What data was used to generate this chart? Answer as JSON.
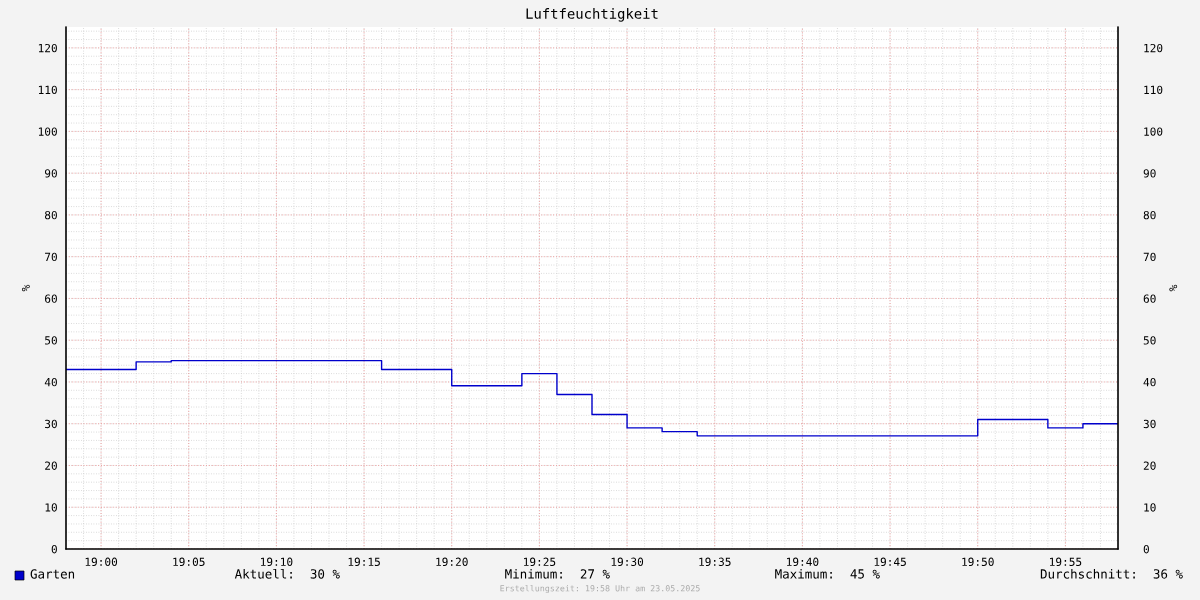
{
  "chart_data": {
    "type": "step",
    "title": "Luftfeuchtigkeit",
    "ylabel": "%",
    "y2label": "%",
    "x": [
      "2025-05-23T18:58",
      "2025-05-23T19:02",
      "2025-05-23T19:04",
      "2025-05-23T19:16",
      "2025-05-23T19:20",
      "2025-05-23T19:24",
      "2025-05-23T19:26",
      "2025-05-23T19:28",
      "2025-05-23T19:30",
      "2025-05-23T19:32",
      "2025-05-23T19:34",
      "2025-05-23T19:50",
      "2025-05-23T19:54",
      "2025-05-23T19:56",
      "2025-05-23T19:58"
    ],
    "series": [
      {
        "name": "Garten",
        "color": "#0000cc",
        "values": [
          43,
          44.8,
          45.1,
          43,
          39.1,
          42,
          37,
          32.2,
          29,
          28.1,
          27.1,
          31,
          29,
          30,
          30
        ]
      }
    ],
    "xlim": [
      "2025-05-23T18:58",
      "2025-05-23T19:58"
    ],
    "xticks": [
      {
        "value": "2025-05-23T19:00",
        "label": "19:00"
      },
      {
        "value": "2025-05-23T19:05",
        "label": "19:05"
      },
      {
        "value": "2025-05-23T19:10",
        "label": "19:10"
      },
      {
        "value": "2025-05-23T19:15",
        "label": "19:15"
      },
      {
        "value": "2025-05-23T19:20",
        "label": "19:20"
      },
      {
        "value": "2025-05-23T19:25",
        "label": "19:25"
      },
      {
        "value": "2025-05-23T19:30",
        "label": "19:30"
      },
      {
        "value": "2025-05-23T19:35",
        "label": "19:35"
      },
      {
        "value": "2025-05-23T19:40",
        "label": "19:40"
      },
      {
        "value": "2025-05-23T19:45",
        "label": "19:45"
      },
      {
        "value": "2025-05-23T19:50",
        "label": "19:50"
      },
      {
        "value": "2025-05-23T19:55",
        "label": "19:55"
      }
    ],
    "ylim": [
      0,
      125
    ],
    "yticks": [
      0,
      10,
      20,
      30,
      40,
      50,
      60,
      70,
      80,
      90,
      100,
      110,
      120
    ],
    "y2lim": [
      0,
      125
    ],
    "y2ticks": [
      0,
      10,
      20,
      30,
      40,
      50,
      60,
      70,
      80,
      90,
      100,
      110,
      120
    ],
    "grid": true,
    "legend": "bottom left",
    "annotations": [
      "Aktuell:  30 %",
      "Minimum:  27 %",
      "Maximum:  45 %",
      "Durchschnitt:  36 %",
      "Erstellungszeit: 19:58 Uhr am 23.05.2025"
    ]
  }
}
